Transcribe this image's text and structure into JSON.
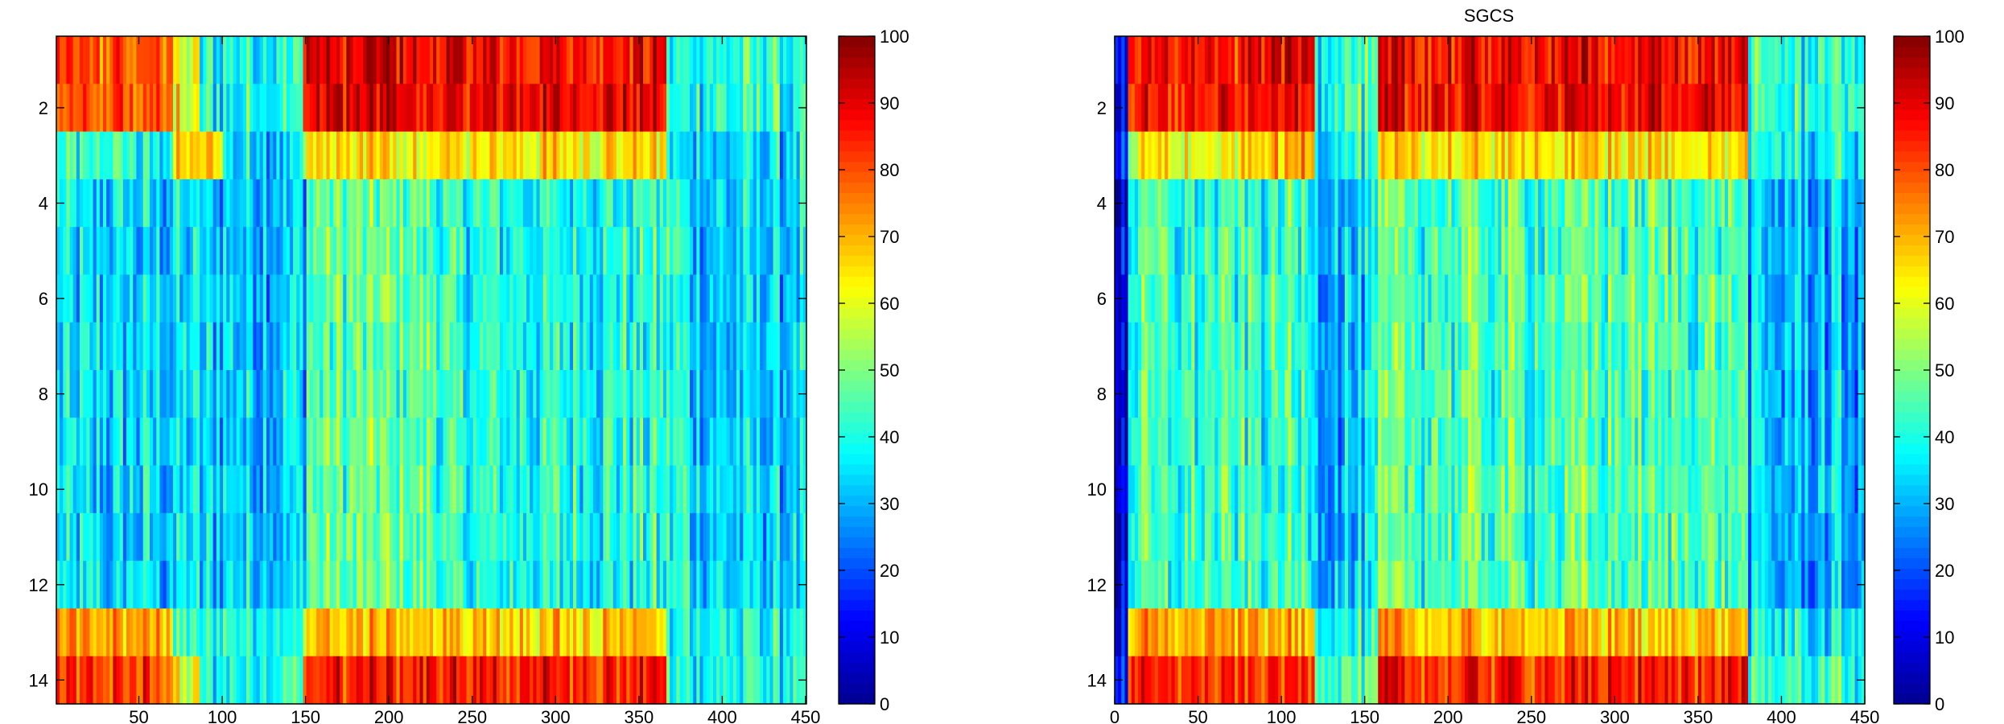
{
  "colormap": [
    "#00008f",
    "#0000ff",
    "#0080ff",
    "#00ffff",
    "#80ff80",
    "#ffff00",
    "#ff8000",
    "#ff0000",
    "#800000"
  ],
  "chart_data": [
    {
      "type": "heatmap",
      "title": "",
      "xlim": [
        0.5,
        450.5
      ],
      "ylim": [
        0.5,
        14.5
      ],
      "x_ticks": [
        50,
        100,
        150,
        200,
        250,
        300,
        350,
        400,
        450
      ],
      "x_tick_labels": [
        "50",
        "100",
        "150",
        "200",
        "250",
        "300",
        "350",
        "400",
        "450"
      ],
      "y_ticks": [
        2,
        4,
        6,
        8,
        10,
        12,
        14
      ],
      "y_tick_labels": [
        "2",
        "4",
        "6",
        "8",
        "10",
        "12",
        "14"
      ],
      "colorbar": {
        "range": [
          0,
          100
        ],
        "ticks": [
          "0",
          "10",
          "20",
          "30",
          "40",
          "50",
          "60",
          "70",
          "80",
          "90",
          "100"
        ]
      },
      "rows": 14,
      "columns": 450,
      "row_band_means": [
        {
          "rows": [
            1,
            2
          ],
          "bands": [
            [
              1,
              70,
              78
            ],
            [
              71,
              85,
              60
            ],
            [
              86,
              148,
              40
            ],
            [
              149,
              210,
              90
            ],
            [
              211,
              365,
              88
            ],
            [
              366,
              450,
              40
            ]
          ]
        },
        {
          "rows": [
            3
          ],
          "bands": [
            [
              1,
              70,
              40
            ],
            [
              71,
              100,
              68
            ],
            [
              101,
              148,
              35
            ],
            [
              149,
              365,
              65
            ],
            [
              366,
              450,
              35
            ]
          ]
        },
        {
          "rows": [
            4,
            5,
            6,
            7,
            8,
            9,
            10,
            11,
            12
          ],
          "bands": [
            [
              1,
              150,
              33
            ],
            [
              151,
              230,
              46
            ],
            [
              231,
              380,
              40
            ],
            [
              381,
              450,
              33
            ]
          ]
        },
        {
          "rows": [
            13
          ],
          "bands": [
            [
              1,
              70,
              72
            ],
            [
              71,
              148,
              40
            ],
            [
              149,
              210,
              68
            ],
            [
              211,
              365,
              68
            ],
            [
              366,
              450,
              38
            ]
          ]
        },
        {
          "rows": [
            14
          ],
          "bands": [
            [
              1,
              70,
              82
            ],
            [
              71,
              85,
              60
            ],
            [
              86,
              148,
              40
            ],
            [
              149,
              210,
              85
            ],
            [
              211,
              365,
              85
            ],
            [
              366,
              450,
              40
            ]
          ]
        }
      ]
    },
    {
      "type": "heatmap",
      "title": "SGCS",
      "xlim": [
        0,
        450
      ],
      "ylim": [
        0.5,
        14.5
      ],
      "x_ticks": [
        0,
        50,
        100,
        150,
        200,
        250,
        300,
        350,
        400,
        450
      ],
      "x_tick_labels": [
        "0",
        "50",
        "100",
        "150",
        "200",
        "250",
        "300",
        "350",
        "400",
        "450"
      ],
      "y_ticks": [
        2,
        4,
        6,
        8,
        10,
        12,
        14
      ],
      "y_tick_labels": [
        "2",
        "4",
        "6",
        "8",
        "10",
        "12",
        "14"
      ],
      "colorbar": {
        "range": [
          0,
          100
        ],
        "ticks": [
          "0",
          "10",
          "20",
          "30",
          "40",
          "50",
          "60",
          "70",
          "80",
          "90",
          "100"
        ]
      },
      "rows": 14,
      "columns": 450,
      "row_band_means": [
        {
          "rows": [
            1,
            2
          ],
          "bands": [
            [
              0,
              7,
              15
            ],
            [
              8,
              78,
              85
            ],
            [
              79,
              120,
              90
            ],
            [
              121,
              158,
              42
            ],
            [
              159,
              215,
              88
            ],
            [
              216,
              380,
              88
            ],
            [
              381,
              450,
              42
            ]
          ]
        },
        {
          "rows": [
            3
          ],
          "bands": [
            [
              0,
              7,
              15
            ],
            [
              8,
              78,
              60
            ],
            [
              79,
              120,
              70
            ],
            [
              121,
              158,
              40
            ],
            [
              159,
              380,
              65
            ],
            [
              381,
              450,
              38
            ]
          ]
        },
        {
          "rows": [
            4,
            5,
            6,
            7,
            8,
            9,
            10,
            11,
            12
          ],
          "bands": [
            [
              0,
              7,
              10
            ],
            [
              8,
              120,
              42
            ],
            [
              121,
              158,
              32
            ],
            [
              159,
              380,
              45
            ],
            [
              381,
              450,
              30
            ]
          ]
        },
        {
          "rows": [
            13
          ],
          "bands": [
            [
              0,
              7,
              15
            ],
            [
              8,
              78,
              70
            ],
            [
              79,
              120,
              70
            ],
            [
              121,
              158,
              40
            ],
            [
              159,
              380,
              68
            ],
            [
              381,
              450,
              38
            ]
          ]
        },
        {
          "rows": [
            14
          ],
          "bands": [
            [
              0,
              7,
              15
            ],
            [
              8,
              78,
              85
            ],
            [
              79,
              120,
              85
            ],
            [
              121,
              158,
              48
            ],
            [
              159,
              380,
              85
            ],
            [
              381,
              450,
              42
            ]
          ]
        }
      ]
    }
  ]
}
